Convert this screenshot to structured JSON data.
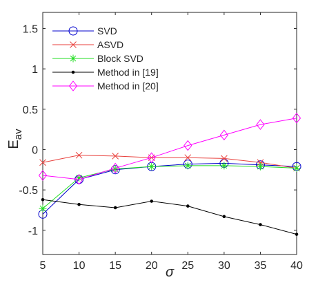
{
  "chart_data": {
    "type": "line",
    "title": "",
    "xlabel": "σ",
    "ylabel": "E",
    "ylabel_subscript": "av",
    "x": [
      5,
      10,
      15,
      20,
      25,
      30,
      35,
      40
    ],
    "xlim": [
      5,
      40
    ],
    "ylim": [
      -1.3,
      1.7
    ],
    "xticks": [
      5,
      10,
      15,
      20,
      25,
      30,
      35,
      40
    ],
    "xtick_labels": [
      "5",
      "10",
      "15",
      "20",
      "25",
      "30",
      "35",
      "40"
    ],
    "yticks": [
      -1,
      -0.5,
      0,
      0.5,
      1,
      1.5
    ],
    "ytick_labels": [
      "-1",
      "-0.5",
      "0",
      "0.5",
      "1",
      "1.5"
    ],
    "grid": false,
    "legend_position": "top-left",
    "series": [
      {
        "name": "SVD",
        "color": "#0000cc",
        "marker": "circle",
        "values": [
          -0.8,
          -0.37,
          -0.25,
          -0.21,
          -0.18,
          -0.17,
          -0.19,
          -0.21
        ]
      },
      {
        "name": "ASVD",
        "color": "#e8403c",
        "marker": "x",
        "values": [
          -0.16,
          -0.07,
          -0.08,
          -0.1,
          -0.1,
          -0.11,
          -0.16,
          -0.23
        ]
      },
      {
        "name": "Block SVD",
        "color": "#22dd22",
        "marker": "asterisk",
        "values": [
          -0.73,
          -0.35,
          -0.24,
          -0.21,
          -0.2,
          -0.2,
          -0.21,
          -0.23
        ]
      },
      {
        "name": "Method in [19]",
        "color": "#000000",
        "marker": "dot",
        "values": [
          -0.62,
          -0.68,
          -0.72,
          -0.64,
          -0.7,
          -0.83,
          -0.93,
          -1.05
        ]
      },
      {
        "name": "Method in [20]",
        "color": "#ff00ff",
        "marker": "diamond",
        "values": [
          -0.32,
          -0.37,
          -0.23,
          -0.1,
          0.05,
          0.18,
          0.31,
          0.39
        ]
      }
    ]
  }
}
